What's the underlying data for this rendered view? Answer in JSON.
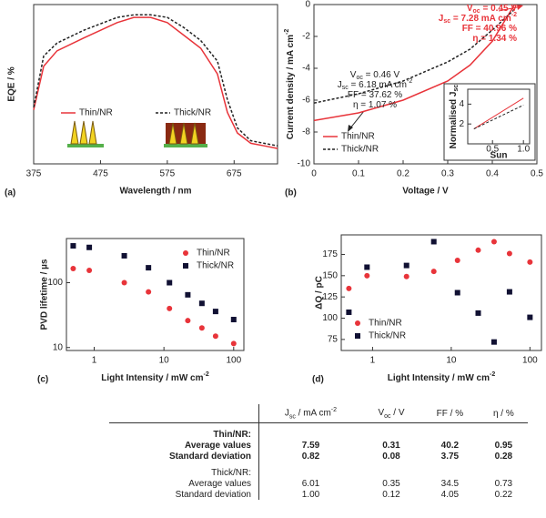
{
  "chart_data": [
    {
      "type": "line",
      "panel_label": "(a)",
      "xlabel": "Wavelength / nm",
      "ylabel": "EQE / %",
      "x": [
        375,
        390,
        410,
        450,
        500,
        525,
        550,
        575,
        600,
        625,
        650,
        665,
        680,
        700,
        720,
        740
      ],
      "series": [
        {
          "name": "Thin/NR",
          "color": "#e8343a",
          "dash": false,
          "values": [
            21,
            38,
            44,
            49,
            55,
            57,
            57,
            55,
            50,
            45,
            35,
            20,
            12,
            8,
            7,
            6
          ]
        },
        {
          "name": "Thick/NR",
          "color": "#222222",
          "dash": true,
          "values": [
            22,
            42,
            47,
            52,
            57,
            58,
            58,
            57,
            53,
            48,
            40,
            25,
            14,
            9,
            8,
            7
          ]
        }
      ],
      "xlim": [
        375,
        740
      ],
      "xticks": [
        375,
        475,
        575,
        675
      ],
      "ylim": [
        0,
        62
      ],
      "legend": "center"
    },
    {
      "type": "line",
      "panel_label": "(b)",
      "xlabel": "Voltage / V",
      "ylabel": {
        "main": "Current density / mA cm",
        "sup": "-2"
      },
      "x": [
        0,
        0.1,
        0.2,
        0.3,
        0.35,
        0.4,
        0.45
      ],
      "series": [
        {
          "name": "Thin/NR",
          "color": "#e8343a",
          "dash": false,
          "values": [
            -7.28,
            -6.8,
            -6.0,
            -4.8,
            -3.8,
            -2.3,
            0
          ]
        },
        {
          "name": "Thick/NR",
          "color": "#222222",
          "dash": true,
          "values": [
            -6.18,
            -5.6,
            -4.8,
            -3.6,
            -2.8,
            -1.6,
            -0.3
          ]
        }
      ],
      "xlim": [
        0,
        0.5
      ],
      "xticks": [
        0,
        0.1,
        0.2,
        0.3,
        0.4,
        0.5
      ],
      "ylim": [
        -10,
        0
      ],
      "yticks": [
        0,
        -2,
        -4,
        -6,
        -8,
        -10
      ],
      "legend": "lower left",
      "annotations": [
        {
          "color": "#e8343a",
          "lines": [
            {
              "main": "V",
              "sub": "oc",
              "rest": " = 0.45 V"
            },
            {
              "main": "J",
              "sub": "sc",
              "rest": " = 7.28 mA cm",
              "sup": "-2"
            },
            {
              "main": "FF = 40.96 %"
            },
            {
              "main": "η = 1.34 %"
            }
          ]
        },
        {
          "color": "#222222",
          "lines": [
            {
              "main": "V",
              "sub": "oc",
              "rest": " = 0.46 V"
            },
            {
              "main": "J",
              "sub": "sc",
              "rest": " = 6.18 mA cm",
              "sup": "-2"
            },
            {
              "main": "FF = 37.62 %"
            },
            {
              "main": "η = 1.07 %"
            }
          ]
        }
      ]
    },
    {
      "type": "line",
      "xlabel": "Sun",
      "ylabel": {
        "main": "Normalised J",
        "sub": "sc"
      },
      "x": [
        0.2,
        1.0
      ],
      "series": [
        {
          "name": "Thin/NR",
          "color": "#e8343a",
          "dash": false,
          "values": [
            1.5,
            4.6
          ]
        },
        {
          "name": "Thick/NR",
          "color": "#222222",
          "dash": true,
          "values": [
            1.5,
            3.9
          ]
        }
      ],
      "xlim": [
        0.1,
        1.1
      ],
      "xticks": [
        0.5,
        {
          "value": 1,
          "label": "1.0"
        }
      ],
      "ylim": [
        0,
        5.5
      ],
      "yticks": [
        2,
        4
      ]
    },
    {
      "type": "scatter",
      "panel_label": "(c)",
      "xlabel": {
        "main": "Light Intensity  / mW cm",
        "sup": "-2"
      },
      "ylabel": "PVD lifetime / µs",
      "x": [
        0.5,
        0.85,
        2.7,
        6,
        12,
        22,
        35,
        55,
        100
      ],
      "series": [
        {
          "name": "Thin/NR",
          "color": "#e8343a",
          "marker": "circle",
          "values": [
            165,
            155,
            100,
            72,
            40,
            26,
            20,
            15,
            11.5
          ]
        },
        {
          "name": "Thick/NR",
          "color": "#111133",
          "marker": "square",
          "values": [
            370,
            350,
            260,
            170,
            100,
            65,
            48,
            36,
            27
          ]
        }
      ],
      "xlim": [
        0.4,
        140
      ],
      "xticks": [
        1,
        10,
        100
      ],
      "xlog": true,
      "ylim": [
        9,
        480
      ],
      "yticks": [
        10,
        100
      ],
      "ylog": true,
      "legend": "upper right"
    },
    {
      "type": "scatter",
      "panel_label": "(d)",
      "xlabel": {
        "main": "Light Intensity / mW cm",
        "sup": "-2"
      },
      "ylabel": "ΔQ / pC",
      "x": [
        0.5,
        0.85,
        2.7,
        6,
        12,
        22,
        35,
        55,
        100
      ],
      "series": [
        {
          "name": "Thin/NR",
          "color": "#e8343a",
          "marker": "circle",
          "values": [
            135,
            150,
            149,
            155,
            168,
            180,
            190,
            176,
            166
          ]
        },
        {
          "name": "Thick/NR",
          "color": "#111133",
          "marker": "square",
          "values": [
            107,
            160,
            162,
            190,
            130,
            106,
            72,
            131,
            101
          ]
        }
      ],
      "xlim": [
        0.4,
        140
      ],
      "xticks": [
        1,
        10,
        100
      ],
      "xlog": true,
      "ylim": [
        62,
        198
      ],
      "yticks": [
        75,
        100,
        125,
        150,
        175
      ],
      "legend": "lower left"
    }
  ],
  "table": {
    "header": [
      {
        "main": "J",
        "sub": "sc",
        "rest": " / mA cm",
        "sup": "-2"
      },
      {
        "main": "V",
        "sub": "oc",
        "rest": " / V"
      },
      {
        "main": "FF / %"
      },
      {
        "main": "η / %"
      }
    ],
    "groups": [
      {
        "name": "Thin/NR:",
        "bold": true,
        "rows": [
          [
            "Average values",
            "7.59",
            "0.31",
            "40.2",
            "0.95"
          ],
          [
            "Standard deviation",
            "0.82",
            "0.08",
            "3.75",
            "0.28"
          ]
        ]
      },
      {
        "name": "Thick/NR:",
        "bold": false,
        "rows": [
          [
            "Average values",
            "6.01",
            "0.35",
            "34.5",
            "0.73"
          ],
          [
            "Standard deviation",
            "1.00",
            "0.12",
            "4.05",
            "0.22"
          ]
        ]
      }
    ]
  }
}
